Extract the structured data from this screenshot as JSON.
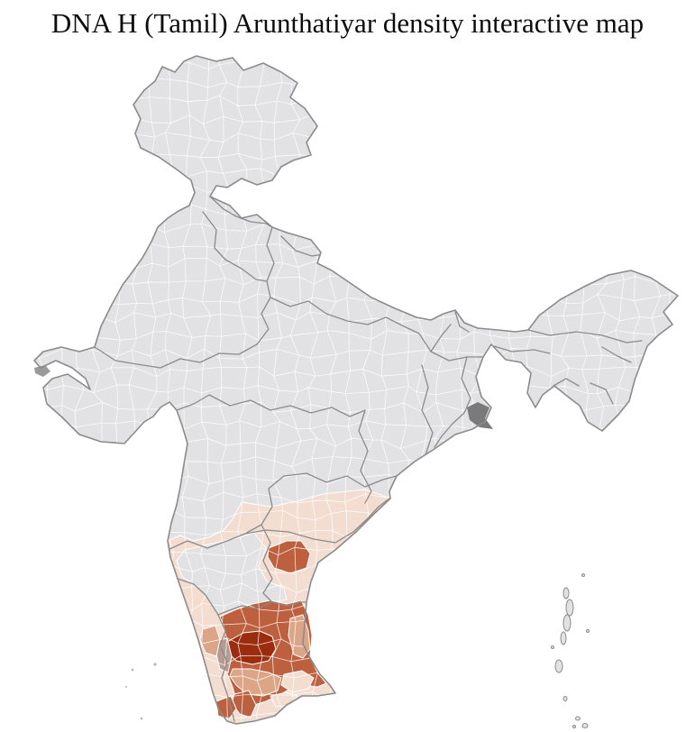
{
  "page": {
    "background": "#ffffff"
  },
  "header": {
    "title": "DNA H (Tamil) Arunthatiyar density interactive map"
  },
  "map": {
    "kind": "choropleth-interactive-map",
    "subject": "DNA H (Tamil) Arunthatiyar density by district, India",
    "sea_color": "#ffffff",
    "base_fill": "#e2e2e4",
    "district_border_color": "#ffffff",
    "state_border_color": "#8b8b8b",
    "coast_border_color": "#8b8b8b",
    "marsh_patch_color": "#7a7a7a",
    "palette": {
      "none": "#e2e2e4",
      "low": "#f3ddd1",
      "low_mid": "#dda587",
      "mid": "#bd6040",
      "high": "#9b2c0d",
      "muted": "#b59b92"
    },
    "density_levels": [
      "none",
      "low",
      "low_mid",
      "mid",
      "high"
    ],
    "regions": [
      {
        "id": "pink-cone",
        "name": "South-India low-density belt (Kerala, coastal Karnataka, Rayalaseema, coastal Andhra)",
        "level": "low"
      },
      {
        "id": "karnataka-interior",
        "name": "Interior Karnataka (no data)",
        "level": "none"
      },
      {
        "id": "guntur",
        "name": "Coastal Andhra district (Guntur area)",
        "level": "mid"
      },
      {
        "id": "tn-mid",
        "name": "Tamil Nadu interior districts",
        "level": "mid"
      },
      {
        "id": "tn-ne-light",
        "name": "North-east Tamil Nadu coastal districts",
        "level": "low_mid"
      },
      {
        "id": "tn-core",
        "name": "Kongu belt core (Coimbatore / Tiruppur / Erode)",
        "level": "high"
      },
      {
        "id": "palakkad-muted",
        "name": "Palghat-gap district",
        "level": "muted"
      },
      {
        "id": "kerala-salmon",
        "name": "Central Kerala district",
        "level": "low_mid"
      },
      {
        "id": "tn-south-belt",
        "name": "Madurai belt",
        "level": "low_mid"
      },
      {
        "id": "tn-se-pink-1",
        "name": "South-east Tamil Nadu coastal district",
        "level": "low"
      },
      {
        "id": "tn-se-pink-2",
        "name": "Ramanathapuram coastal district",
        "level": "low"
      },
      {
        "id": "tn-south-col",
        "name": "Virudhunagar / Tirunelveli column",
        "level": "mid"
      },
      {
        "id": "tn-tip-mid",
        "name": "Kanyakumari tip district",
        "level": "mid"
      }
    ],
    "island_groups": [
      {
        "id": "andaman-nicobar",
        "level": "none"
      },
      {
        "id": "lakshadweep",
        "level": "none"
      }
    ]
  }
}
